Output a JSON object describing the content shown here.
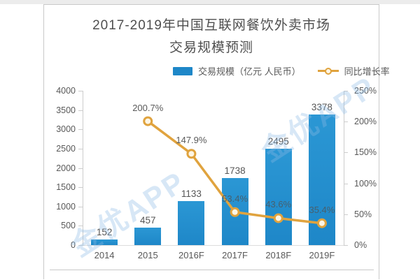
{
  "title": {
    "line1": "2017-2019年中国互联网餐饮外卖市场",
    "line2": "交易规模预测"
  },
  "legend": {
    "bar_label": "交易规模（亿元 人民币）",
    "line_label": "同比增长率"
  },
  "watermark": {
    "text": "金优APP"
  },
  "colors": {
    "bar": "#1e87c8",
    "bar_top": "#2b97d4",
    "line": "#e0a33e",
    "marker_fill": "#fdf6e6",
    "axis": "#cccccc",
    "text": "#595959",
    "on_bar_label": "#47606f",
    "watermark": "rgba(140,185,228,0.35)"
  },
  "chart_data": {
    "type": "bar",
    "subtype": "bar-line-combo",
    "title": "2017-2019年中国互联网餐饮外卖市场交易规模预测",
    "categories": [
      "2014",
      "2015",
      "2016F",
      "2017F",
      "2018F",
      "2019F"
    ],
    "series": [
      {
        "name": "交易规模（亿元 人民币）",
        "type": "bar",
        "yaxis": "left",
        "values": [
          152,
          457,
          1133,
          1738,
          2495,
          3378
        ],
        "labels": [
          "152",
          "457",
          "1133",
          "1738",
          "2495",
          "3378"
        ]
      },
      {
        "name": "同比增长率",
        "type": "line",
        "yaxis": "right",
        "values": [
          null,
          200.7,
          147.9,
          53.4,
          43.6,
          35.4
        ],
        "labels": [
          "",
          "200.7%",
          "147.9%",
          "53.4%",
          "43.6%",
          "35.4%"
        ]
      }
    ],
    "left_axis": {
      "min": 0,
      "max": 4000,
      "step": 500,
      "tick_labels": [
        "0",
        "500",
        "1000",
        "1500",
        "2000",
        "2500",
        "3000",
        "3500",
        "4000"
      ]
    },
    "right_axis": {
      "min": 0,
      "max": 250,
      "step": 50,
      "tick_labels": [
        "0%",
        "50%",
        "100%",
        "150%",
        "200%",
        "250%"
      ]
    },
    "grid": false,
    "legend_position": "top-center"
  }
}
